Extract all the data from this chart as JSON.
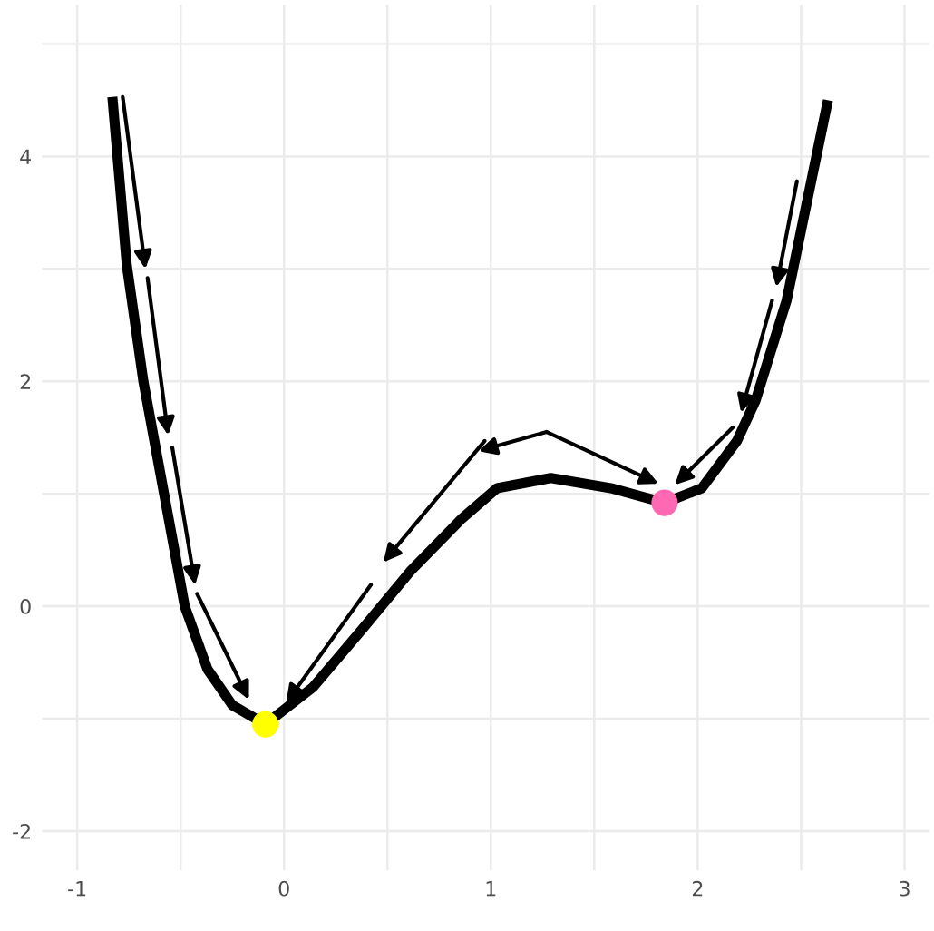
{
  "chart_data": {
    "type": "line",
    "series": [
      {
        "color": "#000000",
        "marker": "none",
        "x": [
          -0.83,
          -0.76,
          -0.68,
          -0.48,
          -0.37,
          -0.25,
          -0.09,
          0.14,
          0.38,
          0.61,
          0.86,
          1.03,
          1.29,
          1.58,
          1.84,
          2.02,
          2.19,
          2.28,
          2.43,
          2.54,
          2.63
        ],
        "values": [
          4.53,
          3.03,
          2.0,
          0.0,
          -0.56,
          -0.88,
          -1.05,
          -0.72,
          -0.2,
          0.31,
          0.78,
          1.05,
          1.14,
          1.05,
          0.92,
          1.05,
          1.47,
          1.83,
          2.72,
          3.7,
          4.5
        ]
      },
      {
        "type": "scatter",
        "marker": "circle",
        "color": "#ffff00",
        "x": [
          -0.09
        ],
        "values": [
          -1.05
        ]
      },
      {
        "type": "scatter",
        "marker": "circle",
        "color": "#ff69b4",
        "x": [
          1.84
        ],
        "values": [
          0.92
        ]
      }
    ],
    "xlim": [
      -1.17,
      3.12
    ],
    "ylim": [
      -2.35,
      5.35
    ],
    "xticks": [
      {
        "value": -1,
        "label": "-1"
      },
      {
        "value": -0.5,
        "label": null
      },
      0,
      {
        "value": 0.5,
        "label": null
      },
      1,
      {
        "value": 1.5,
        "label": null
      },
      2,
      {
        "value": 2.5,
        "label": null
      },
      3
    ],
    "yticks": [
      {
        "value": -2,
        "label": "-2"
      },
      {
        "value": -1,
        "label": null
      },
      0,
      {
        "value": 1,
        "label": null
      },
      2,
      {
        "value": 3,
        "label": null
      },
      4,
      {
        "value": 5,
        "label": null
      }
    ],
    "grid": true,
    "line_style": "solid"
  }
}
